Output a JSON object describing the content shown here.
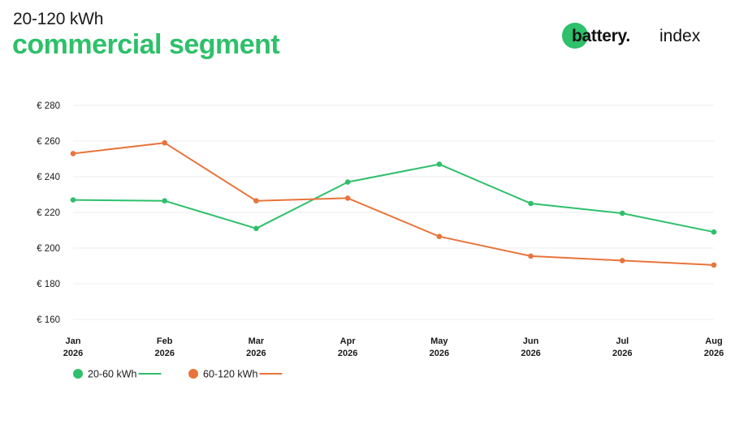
{
  "header": {
    "subtitle": "20-120 kWh",
    "title": "commercial segment"
  },
  "logo": {
    "brand": "battery.",
    "suffix": "index"
  },
  "colors": {
    "green": "#2ec06a",
    "orange": "#e8743b",
    "grid": "#ececec"
  },
  "chart_data": {
    "type": "line",
    "title": "commercial segment",
    "subtitle": "20-120 kWh",
    "categories": [
      [
        "Jan",
        "2026"
      ],
      [
        "Feb",
        "2026"
      ],
      [
        "Mar",
        "2026"
      ],
      [
        "Apr",
        "2026"
      ],
      [
        "May",
        "2026"
      ],
      [
        "Jun",
        "2026"
      ],
      [
        "Jul",
        "2026"
      ],
      [
        "Aug",
        "2026"
      ]
    ],
    "y_ticks": [
      {
        "value": 160,
        "label": "€ 160"
      },
      {
        "value": 180,
        "label": "€ 180"
      },
      {
        "value": 200,
        "label": "€ 200"
      },
      {
        "value": 220,
        "label": "€ 220"
      },
      {
        "value": 240,
        "label": "€ 240"
      },
      {
        "value": 260,
        "label": "€ 260"
      },
      {
        "value": 280,
        "label": "€ 280"
      }
    ],
    "ylim": [
      160,
      280
    ],
    "grid": true,
    "legend_position": "bottom-left",
    "series": [
      {
        "name": "20-60 kWh",
        "color": "#2ec06a",
        "values": [
          227,
          226.5,
          211,
          237,
          247,
          225,
          219.5,
          209
        ]
      },
      {
        "name": "60-120 kWh",
        "color": "#e8743b",
        "values": [
          253,
          259,
          226.5,
          228,
          206.5,
          195.5,
          193,
          190.5
        ]
      }
    ]
  }
}
